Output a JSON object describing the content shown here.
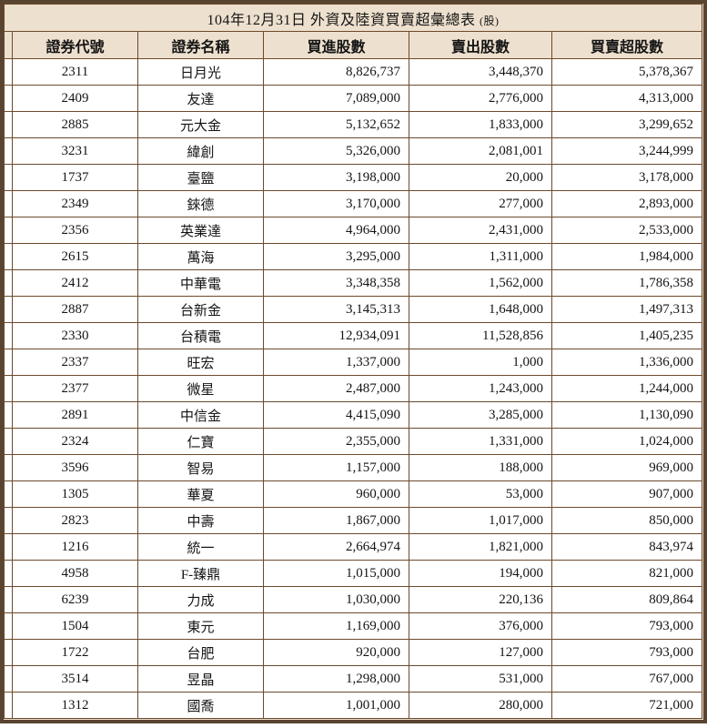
{
  "title": {
    "main": "104年12月31日 外資及陸資買賣超彙總表",
    "unit": "(股)"
  },
  "table": {
    "headers": [
      "證券代號",
      "證券名稱",
      "買進股數",
      "賣出股數",
      "買賣超股數"
    ],
    "rows": [
      [
        "2311",
        "日月光",
        "8,826,737",
        "3,448,370",
        "5,378,367"
      ],
      [
        "2409",
        "友達",
        "7,089,000",
        "2,776,000",
        "4,313,000"
      ],
      [
        "2885",
        "元大金",
        "5,132,652",
        "1,833,000",
        "3,299,652"
      ],
      [
        "3231",
        "緯創",
        "5,326,000",
        "2,081,001",
        "3,244,999"
      ],
      [
        "1737",
        "臺鹽",
        "3,198,000",
        "20,000",
        "3,178,000"
      ],
      [
        "2349",
        "錸德",
        "3,170,000",
        "277,000",
        "2,893,000"
      ],
      [
        "2356",
        "英業達",
        "4,964,000",
        "2,431,000",
        "2,533,000"
      ],
      [
        "2615",
        "萬海",
        "3,295,000",
        "1,311,000",
        "1,984,000"
      ],
      [
        "2412",
        "中華電",
        "3,348,358",
        "1,562,000",
        "1,786,358"
      ],
      [
        "2887",
        "台新金",
        "3,145,313",
        "1,648,000",
        "1,497,313"
      ],
      [
        "2330",
        "台積電",
        "12,934,091",
        "11,528,856",
        "1,405,235"
      ],
      [
        "2337",
        "旺宏",
        "1,337,000",
        "1,000",
        "1,336,000"
      ],
      [
        "2377",
        "微星",
        "2,487,000",
        "1,243,000",
        "1,244,000"
      ],
      [
        "2891",
        "中信金",
        "4,415,090",
        "3,285,000",
        "1,130,090"
      ],
      [
        "2324",
        "仁寶",
        "2,355,000",
        "1,331,000",
        "1,024,000"
      ],
      [
        "3596",
        "智易",
        "1,157,000",
        "188,000",
        "969,000"
      ],
      [
        "1305",
        "華夏",
        "960,000",
        "53,000",
        "907,000"
      ],
      [
        "2823",
        "中壽",
        "1,867,000",
        "1,017,000",
        "850,000"
      ],
      [
        "1216",
        "統一",
        "2,664,974",
        "1,821,000",
        "843,974"
      ],
      [
        "4958",
        "F-臻鼎",
        "1,015,000",
        "194,000",
        "821,000"
      ],
      [
        "6239",
        "力成",
        "1,030,000",
        "220,136",
        "809,864"
      ],
      [
        "1504",
        "東元",
        "1,169,000",
        "376,000",
        "793,000"
      ],
      [
        "1722",
        "台肥",
        "920,000",
        "127,000",
        "793,000"
      ],
      [
        "3514",
        "昱晶",
        "1,298,000",
        "531,000",
        "767,000"
      ],
      [
        "1312",
        "國喬",
        "1,001,000",
        "280,000",
        "721,000"
      ]
    ]
  },
  "colors": {
    "frame_border": "#584431",
    "panel_background": "#EDE0CE",
    "grid_line": "#6C4A2B",
    "cell_background": "#FFFFFF",
    "text": "#141414"
  },
  "chart_data": {
    "type": "table",
    "title": "104年12月31日 外資及陸資買賣超彙總表 (股)",
    "columns": [
      "證券代號",
      "證券名稱",
      "買進股數",
      "賣出股數",
      "買賣超股數"
    ],
    "rows": [
      [
        "2311",
        "日月光",
        8826737,
        3448370,
        5378367
      ],
      [
        "2409",
        "友達",
        7089000,
        2776000,
        4313000
      ],
      [
        "2885",
        "元大金",
        5132652,
        1833000,
        3299652
      ],
      [
        "3231",
        "緯創",
        5326000,
        2081001,
        3244999
      ],
      [
        "1737",
        "臺鹽",
        3198000,
        20000,
        3178000
      ],
      [
        "2349",
        "錸德",
        3170000,
        277000,
        2893000
      ],
      [
        "2356",
        "英業達",
        4964000,
        2431000,
        2533000
      ],
      [
        "2615",
        "萬海",
        3295000,
        1311000,
        1984000
      ],
      [
        "2412",
        "中華電",
        3348358,
        1562000,
        1786358
      ],
      [
        "2887",
        "台新金",
        3145313,
        1648000,
        1497313
      ],
      [
        "2330",
        "台積電",
        12934091,
        11528856,
        1405235
      ],
      [
        "2337",
        "旺宏",
        1337000,
        1000,
        1336000
      ],
      [
        "2377",
        "微星",
        2487000,
        1243000,
        1244000
      ],
      [
        "2891",
        "中信金",
        4415090,
        3285000,
        1130090
      ],
      [
        "2324",
        "仁寶",
        2355000,
        1331000,
        1024000
      ],
      [
        "3596",
        "智易",
        1157000,
        188000,
        969000
      ],
      [
        "1305",
        "華夏",
        960000,
        53000,
        907000
      ],
      [
        "2823",
        "中壽",
        1867000,
        1017000,
        850000
      ],
      [
        "1216",
        "統一",
        2664974,
        1821000,
        843974
      ],
      [
        "4958",
        "F-臻鼎",
        1015000,
        194000,
        821000
      ],
      [
        "6239",
        "力成",
        1030000,
        220136,
        809864
      ],
      [
        "1504",
        "東元",
        1169000,
        376000,
        793000
      ],
      [
        "1722",
        "台肥",
        920000,
        127000,
        793000
      ],
      [
        "3514",
        "昱晶",
        1298000,
        531000,
        767000
      ],
      [
        "1312",
        "國喬",
        1001000,
        280000,
        721000
      ]
    ]
  }
}
